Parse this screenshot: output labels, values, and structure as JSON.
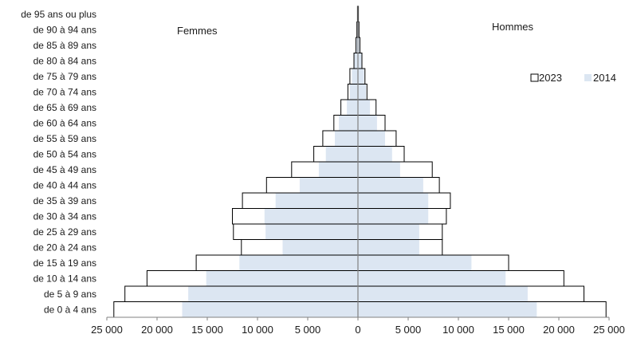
{
  "chart_data": {
    "type": "bar",
    "orientation": "horizontal-pyramid",
    "categories": [
      "de 0 à 4 ans",
      "de 5 à 9 ans",
      "de 10 à 14 ans",
      "de 15 à 19 ans",
      "de 20 à 24 ans",
      "de 25 à 29 ans",
      "de 30 à 34 ans",
      "de 35 à 39 ans",
      "de 40 à 44 ans",
      "de 45 à 49 ans",
      "de 50 à 54 ans",
      "de 55 à 59 ans",
      "de 60 à 64 ans",
      "de 65 à 69 ans",
      "de 70 à 74 ans",
      "de 75 à 79 ans",
      "de 80 à 84 ans",
      "de 85 à 89 ans",
      "de 90 à 94 ans",
      "de 95 ans ou plus"
    ],
    "left_label": "Femmes",
    "right_label": "Hommes",
    "series": [
      {
        "name": "2023",
        "style": "outline",
        "femmes": [
          24300,
          23200,
          21000,
          16100,
          11600,
          12400,
          12500,
          11500,
          9100,
          6600,
          4400,
          3500,
          2400,
          1700,
          1000,
          800,
          400,
          200,
          100,
          50
        ],
        "hommes": [
          24700,
          22500,
          20500,
          15000,
          8400,
          8400,
          8800,
          9200,
          8100,
          7400,
          4600,
          3800,
          2700,
          1800,
          900,
          700,
          400,
          200,
          100,
          50
        ]
      },
      {
        "name": "2014",
        "style": "fill",
        "color": "#dce6f2",
        "femmes": [
          17500,
          16900,
          15100,
          11800,
          7500,
          9200,
          9300,
          8200,
          5800,
          3900,
          3200,
          2300,
          1900,
          1100,
          800,
          600,
          400,
          200,
          100,
          50
        ],
        "hommes": [
          17800,
          16900,
          14700,
          11300,
          6100,
          6100,
          7000,
          7000,
          6500,
          4200,
          3400,
          2700,
          1900,
          1200,
          800,
          600,
          400,
          200,
          100,
          50
        ]
      }
    ],
    "x_ticks": [
      -25000,
      -20000,
      -15000,
      -10000,
      -5000,
      0,
      5000,
      10000,
      15000,
      20000,
      25000
    ],
    "x_tick_labels": [
      "25 000",
      "20 000",
      "15 000",
      "10 000",
      "5 000",
      "0",
      "5 000",
      "10 000",
      "15 000",
      "20 000",
      "25 000"
    ],
    "xlim": [
      -25000,
      25000
    ],
    "grid": false,
    "legend_position": "right"
  }
}
